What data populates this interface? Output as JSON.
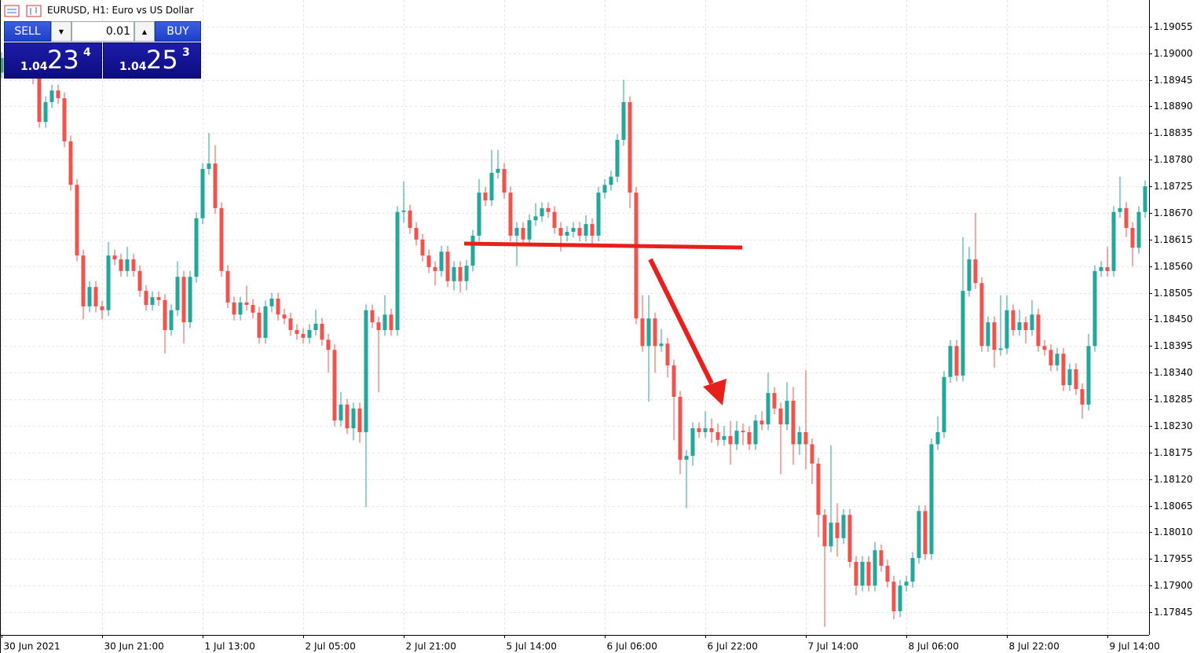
{
  "header": {
    "title": "EURUSD, H1:  Euro vs US Dollar"
  },
  "trade_panel": {
    "sell_label": "SELL",
    "buy_label": "BUY",
    "lot": "0.01",
    "sell_price": {
      "prefix": "1.04",
      "pips": "23",
      "fraction": "4"
    },
    "buy_price": {
      "prefix": "1.04",
      "pips": "25",
      "fraction": "3"
    }
  },
  "chart_data": {
    "type": "candlestick",
    "up_color": "#26a69a",
    "down_color": "#ef5350",
    "grid": true,
    "categories": [
      "30 Jun 2021",
      null,
      null,
      null,
      null,
      null,
      null,
      null,
      null,
      null,
      null,
      null,
      null,
      null,
      null,
      null,
      "30 Jun 21:00",
      null,
      null,
      null,
      null,
      null,
      null,
      null,
      null,
      null,
      null,
      null,
      null,
      null,
      null,
      null,
      "1 Jul 13:00",
      null,
      null,
      null,
      null,
      null,
      null,
      null,
      null,
      null,
      null,
      null,
      null,
      null,
      null,
      null,
      "2 Jul 05:00",
      null,
      null,
      null,
      null,
      null,
      null,
      null,
      null,
      null,
      null,
      null,
      null,
      null,
      null,
      null,
      "2 Jul 21:00",
      null,
      null,
      null,
      null,
      null,
      null,
      null,
      null,
      null,
      null,
      null,
      null,
      null,
      null,
      null,
      "5 Jul 14:00",
      null,
      null,
      null,
      null,
      null,
      null,
      null,
      null,
      null,
      null,
      null,
      null,
      null,
      null,
      null,
      "6 Jul 06:00",
      null,
      null,
      null,
      null,
      null,
      null,
      null,
      null,
      null,
      null,
      null,
      null,
      null,
      null,
      null,
      "6 Jul 22:00",
      null,
      null,
      null,
      null,
      null,
      null,
      null,
      null,
      null,
      null,
      null,
      null,
      null,
      null,
      null,
      "7 Jul 14:00",
      null,
      null,
      null,
      null,
      null,
      null,
      null,
      null,
      null,
      null,
      null,
      null,
      null,
      null,
      null,
      "8 Jul 06:00",
      null,
      null,
      null,
      null,
      null,
      null,
      null,
      null,
      null,
      null,
      null,
      null,
      null,
      null,
      null,
      "8 Jul 22:00",
      null,
      null,
      null,
      null,
      null,
      null,
      null,
      null,
      null,
      null,
      null,
      null,
      null,
      null,
      null,
      "9 Jul 14:00",
      null,
      null,
      null,
      null,
      null,
      null
    ],
    "open": [
      1.1896,
      1.1899,
      1.18965,
      1.18985,
      1.1897,
      1.1898,
      1.18948,
      1.18858,
      1.18899,
      1.18923,
      1.18907,
      1.18818,
      1.18728,
      1.18582,
      1.18477,
      1.18517,
      1.18477,
      1.18469,
      1.18582,
      1.18574,
      1.1855,
      1.18574,
      1.1855,
      1.18509,
      1.1848,
      1.18496,
      1.1849,
      1.18428,
      1.18469,
      1.18538,
      1.18444,
      1.18538,
      1.18659,
      1.18761,
      1.18772,
      1.1868,
      1.1855,
      1.18485,
      1.1846,
      1.18485,
      1.1848,
      1.18464,
      1.18412,
      1.18477,
      1.18493,
      1.1846,
      1.18452,
      1.18428,
      1.1842,
      1.18412,
      1.18428,
      1.18441,
      1.18408,
      1.18387,
      1.18241,
      1.18274,
      1.18225,
      1.18266,
      1.18217,
      1.18469,
      1.18444,
      1.18428,
      1.1846,
      1.18428,
      1.18672,
      1.18675,
      1.18639,
      1.18615,
      1.18582,
      1.18558,
      1.1855,
      1.1859,
      1.18529,
      1.18558,
      1.18529,
      1.18561,
      1.18623,
      1.18712,
      1.18696,
      1.18753,
      1.18761,
      1.18712,
      1.18623,
      1.18639,
      1.18615,
      1.18655,
      1.18663,
      1.1868,
      1.18672,
      1.18639,
      1.18623,
      1.18631,
      1.18639,
      1.18623,
      1.18647,
      1.18623,
      1.18712,
      1.18728,
      1.18745,
      1.18821,
      1.18899,
      1.18712,
      1.18452,
      1.18395,
      1.18452,
      1.18395,
      1.184,
      1.18355,
      1.1829,
      1.1816,
      1.18168,
      1.18225,
      1.18217,
      1.18225,
      1.18217,
      1.18201,
      1.18209,
      1.18192,
      1.1822,
      1.18217,
      1.18192,
      1.18241,
      1.18233,
      1.18298,
      1.18266,
      1.18233,
      1.18282,
      1.18192,
      1.18217,
      1.18192,
      1.18152,
      1.18046,
      1.17981,
      1.1803,
      1.17998,
      1.18046,
      1.17949,
      1.179,
      1.17949,
      1.179,
      1.17973,
      1.17941,
      1.17908,
      1.17847,
      1.179,
      1.17908,
      1.17957,
      1.18054,
      1.17965,
      1.18192,
      1.18217,
      1.18331,
      1.18395,
      1.18334,
      1.18509,
      1.18574,
      1.18525,
      1.18395,
      1.18444,
      1.18387,
      1.1839,
      1.18469,
      1.18428,
      1.18444,
      1.18428,
      1.1846,
      1.18395,
      1.18387,
      1.18355,
      1.18379,
      1.18314,
      1.18347,
      1.18306,
      1.18274,
      1.18395,
      1.1855,
      1.18558,
      1.1855,
      1.18672,
      1.1868,
      1.18639,
      1.18598,
      1.18672
    ],
    "high": [
      1.19002,
      1.19002,
      1.18997,
      1.18997,
      1.18992,
      1.18992,
      1.1896,
      1.18911,
      1.18935,
      1.18935,
      1.18919,
      1.1883,
      1.1874,
      1.18594,
      1.18529,
      1.18529,
      1.18489,
      1.1861,
      1.18594,
      1.18586,
      1.186,
      1.18586,
      1.18562,
      1.18521,
      1.18508,
      1.18508,
      1.18502,
      1.18481,
      1.1857,
      1.1855,
      1.1855,
      1.18671,
      1.18773,
      1.18835,
      1.1881,
      1.18692,
      1.18562,
      1.18497,
      1.18497,
      1.1852,
      1.18492,
      1.18476,
      1.18489,
      1.18505,
      1.18505,
      1.18472,
      1.18464,
      1.1844,
      1.18432,
      1.1844,
      1.1847,
      1.18453,
      1.1842,
      1.18399,
      1.183,
      1.18286,
      1.18278,
      1.18278,
      1.18481,
      1.18481,
      1.18456,
      1.185,
      1.18472,
      1.18684,
      1.18735,
      1.18687,
      1.18651,
      1.18627,
      1.18594,
      1.1857,
      1.18602,
      1.18602,
      1.1857,
      1.1857,
      1.18573,
      1.18635,
      1.1874,
      1.18724,
      1.188,
      1.188,
      1.18773,
      1.18724,
      1.18651,
      1.18651,
      1.18667,
      1.1869,
      1.18692,
      1.18692,
      1.18684,
      1.18651,
      1.18643,
      1.18651,
      1.18651,
      1.18665,
      1.18659,
      1.18724,
      1.1874,
      1.18757,
      1.18833,
      1.18945,
      1.18911,
      1.18724,
      1.185,
      1.185,
      1.18464,
      1.1843,
      1.18412,
      1.18367,
      1.18302,
      1.1818,
      1.18237,
      1.18237,
      1.1826,
      1.18245,
      1.18235,
      1.1823,
      1.1824,
      1.1824,
      1.18235,
      1.18229,
      1.18253,
      1.1826,
      1.1834,
      1.1831,
      1.18278,
      1.1832,
      1.1831,
      1.18229,
      1.18345,
      1.18204,
      1.18164,
      1.18058,
      1.1819,
      1.1807,
      1.18058,
      1.18058,
      1.17961,
      1.17961,
      1.17961,
      1.1799,
      1.17985,
      1.17953,
      1.1792,
      1.17912,
      1.1792,
      1.17969,
      1.18066,
      1.18066,
      1.18204,
      1.1825,
      1.18343,
      1.18407,
      1.18407,
      1.1862,
      1.186,
      1.1867,
      1.18537,
      1.18456,
      1.18456,
      1.185,
      1.185,
      1.18481,
      1.1847,
      1.18456,
      1.1849,
      1.18472,
      1.18407,
      1.18399,
      1.18391,
      1.18391,
      1.18359,
      1.18359,
      1.18318,
      1.1842,
      1.18562,
      1.1857,
      1.186,
      1.18684,
      1.18745,
      1.18692,
      1.18651,
      1.18684,
      1.18737
    ],
    "low": [
      1.18948,
      1.18953,
      1.18953,
      1.18958,
      1.18958,
      1.18936,
      1.18846,
      1.18846,
      1.18887,
      1.18895,
      1.18806,
      1.18716,
      1.1857,
      1.1845,
      1.18465,
      1.18465,
      1.1845,
      1.18457,
      1.18562,
      1.18538,
      1.18538,
      1.18538,
      1.18497,
      1.18468,
      1.18468,
      1.18478,
      1.1838,
      1.18416,
      1.18457,
      1.184,
      1.18432,
      1.18526,
      1.18647,
      1.18749,
      1.18668,
      1.18538,
      1.18473,
      1.18448,
      1.18448,
      1.18468,
      1.18452,
      1.184,
      1.184,
      1.18465,
      1.18448,
      1.1844,
      1.18416,
      1.18408,
      1.184,
      1.184,
      1.18416,
      1.18396,
      1.1834,
      1.18229,
      1.18229,
      1.18213,
      1.182,
      1.18195,
      1.18062,
      1.18432,
      1.183,
      1.18416,
      1.18416,
      1.18416,
      1.1865,
      1.18627,
      1.18603,
      1.1857,
      1.18546,
      1.1852,
      1.18538,
      1.18517,
      1.1851,
      1.18505,
      1.1851,
      1.18549,
      1.18611,
      1.18684,
      1.18684,
      1.18741,
      1.187,
      1.18611,
      1.1856,
      1.18603,
      1.18603,
      1.18643,
      1.18651,
      1.1866,
      1.18627,
      1.1859,
      1.18611,
      1.18619,
      1.18611,
      1.18611,
      1.186,
      1.18611,
      1.187,
      1.18716,
      1.18733,
      1.18809,
      1.1868,
      1.1844,
      1.18383,
      1.1828,
      1.1834,
      1.18383,
      1.1833,
      1.182,
      1.1813,
      1.1806,
      1.18148,
      1.18205,
      1.18205,
      1.18195,
      1.18189,
      1.18189,
      1.1815,
      1.1818,
      1.1819,
      1.1818,
      1.1818,
      1.18221,
      1.18221,
      1.18254,
      1.1813,
      1.18221,
      1.1815,
      1.1817,
      1.1814,
      1.1811,
      1.18,
      1.17815,
      1.17969,
      1.1796,
      1.17986,
      1.17937,
      1.1788,
      1.17888,
      1.17888,
      1.17888,
      1.17929,
      1.17896,
      1.1783,
      1.17835,
      1.17888,
      1.17896,
      1.17945,
      1.17953,
      1.17953,
      1.1818,
      1.18205,
      1.18319,
      1.18322,
      1.18322,
      1.18497,
      1.18513,
      1.18383,
      1.18383,
      1.1835,
      1.18375,
      1.18378,
      1.18416,
      1.18416,
      1.184,
      1.18416,
      1.18383,
      1.18375,
      1.18343,
      1.18343,
      1.18302,
      1.18302,
      1.18294,
      1.18245,
      1.18262,
      1.18383,
      1.18538,
      1.18538,
      1.18538,
      1.1866,
      1.1862,
      1.1856,
      1.18586,
      1.1866
    ],
    "close": [
      1.1899,
      1.18965,
      1.18985,
      1.1897,
      1.1898,
      1.18948,
      1.18858,
      1.18899,
      1.18923,
      1.18907,
      1.18818,
      1.18728,
      1.18582,
      1.18477,
      1.18517,
      1.18477,
      1.18469,
      1.18582,
      1.18574,
      1.1855,
      1.18574,
      1.1855,
      1.18509,
      1.1848,
      1.18496,
      1.1849,
      1.18428,
      1.18469,
      1.18538,
      1.18444,
      1.18538,
      1.18659,
      1.18761,
      1.18772,
      1.1868,
      1.1855,
      1.18485,
      1.1846,
      1.18485,
      1.1848,
      1.18464,
      1.18412,
      1.18477,
      1.18493,
      1.1846,
      1.18452,
      1.18428,
      1.1842,
      1.18412,
      1.18428,
      1.18441,
      1.18408,
      1.18387,
      1.18241,
      1.18274,
      1.18225,
      1.18266,
      1.18217,
      1.18469,
      1.18444,
      1.18428,
      1.1846,
      1.18428,
      1.18672,
      1.18675,
      1.18639,
      1.18615,
      1.18582,
      1.18558,
      1.1855,
      1.1859,
      1.18529,
      1.18558,
      1.18529,
      1.18561,
      1.18623,
      1.18712,
      1.18696,
      1.18753,
      1.18761,
      1.18712,
      1.18623,
      1.18639,
      1.18615,
      1.18655,
      1.18663,
      1.1868,
      1.18672,
      1.18639,
      1.18623,
      1.18631,
      1.18639,
      1.18623,
      1.18647,
      1.18623,
      1.18712,
      1.18728,
      1.18745,
      1.18821,
      1.18899,
      1.18712,
      1.18452,
      1.18395,
      1.18452,
      1.18395,
      1.184,
      1.18355,
      1.1829,
      1.1816,
      1.18168,
      1.18225,
      1.18217,
      1.18225,
      1.18217,
      1.18201,
      1.18209,
      1.18192,
      1.1822,
      1.18217,
      1.18192,
      1.18241,
      1.18233,
      1.18298,
      1.18266,
      1.18233,
      1.18282,
      1.18192,
      1.18217,
      1.18192,
      1.18152,
      1.18046,
      1.17981,
      1.1803,
      1.17998,
      1.18046,
      1.17949,
      1.179,
      1.17949,
      1.179,
      1.17973,
      1.17941,
      1.17908,
      1.17847,
      1.179,
      1.17908,
      1.17957,
      1.18054,
      1.17965,
      1.18192,
      1.18217,
      1.18331,
      1.18395,
      1.18334,
      1.18509,
      1.18574,
      1.18525,
      1.18395,
      1.18444,
      1.18387,
      1.1839,
      1.18469,
      1.18428,
      1.18444,
      1.18428,
      1.1846,
      1.18395,
      1.18387,
      1.18355,
      1.18379,
      1.18314,
      1.18347,
      1.18306,
      1.18274,
      1.18395,
      1.1855,
      1.18558,
      1.1855,
      1.18672,
      1.1868,
      1.18639,
      1.18598,
      1.18672,
      1.18725
    ],
    "ylim": [
      1.17798,
      1.1911
    ],
    "yticks": [
      1.19055,
      {
        "value": 1.19,
        "label": "1.19000"
      },
      1.18945,
      {
        "value": 1.1889,
        "label": "1.18890"
      },
      1.18835,
      {
        "value": 1.1878,
        "label": "1.18780"
      },
      1.18725,
      {
        "value": 1.1867,
        "label": "1.18670"
      },
      1.18615,
      {
        "value": 1.1856,
        "label": "1.18560"
      },
      1.18505,
      {
        "value": 1.1845,
        "label": "1.18450"
      },
      1.18395,
      {
        "value": 1.1834,
        "label": "1.18340"
      },
      1.18285,
      {
        "value": 1.1823,
        "label": "1.18230"
      },
      1.18175,
      {
        "value": 1.1812,
        "label": "1.18120"
      },
      1.18065,
      {
        "value": 1.1801,
        "label": "1.18010"
      },
      1.17955,
      {
        "value": 1.179,
        "label": "1.17900"
      },
      1.17845
    ]
  }
}
